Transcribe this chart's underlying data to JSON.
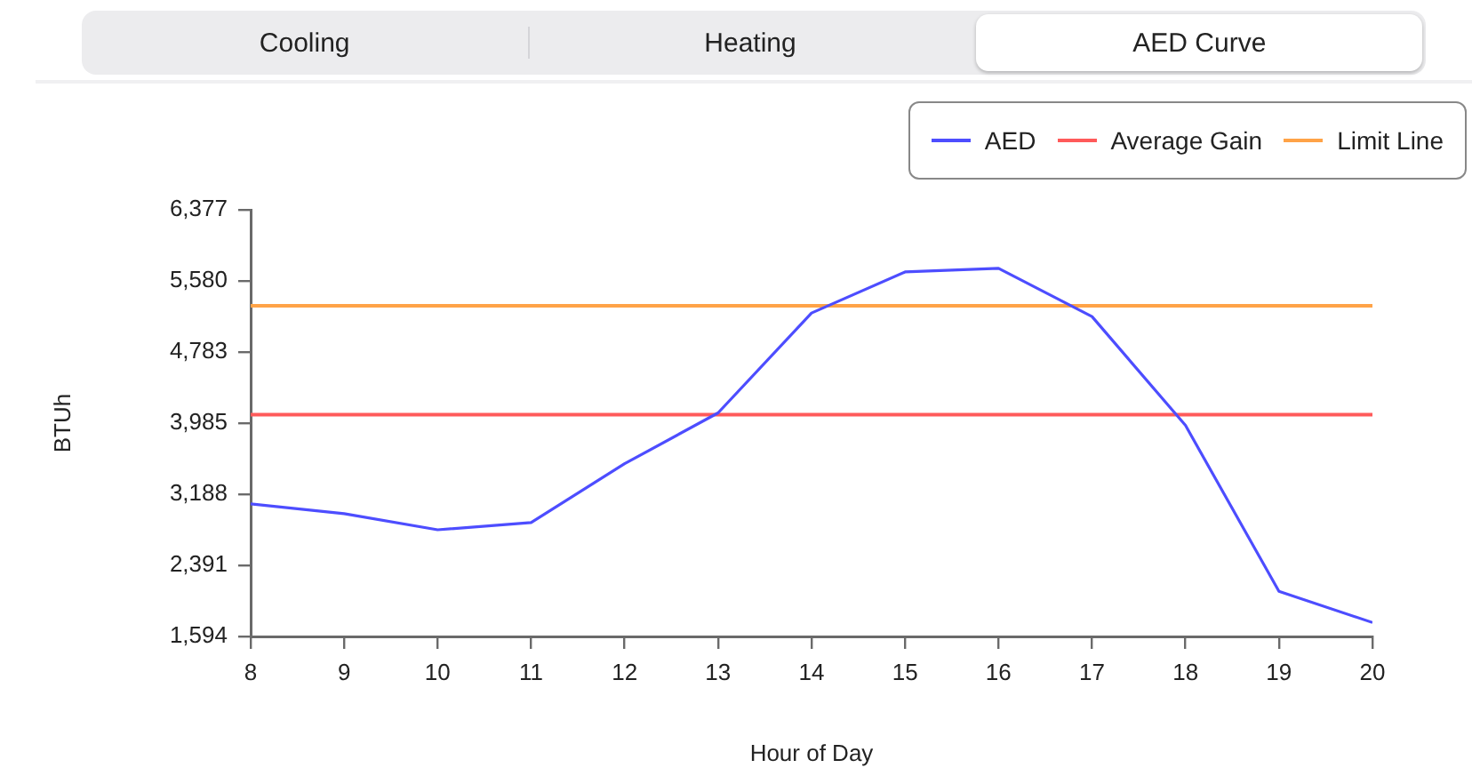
{
  "chart_data": {
    "type": "line",
    "xlabel": "Hour of Day",
    "ylabel": "BTUh",
    "annotations": [
      "Cooling",
      "Heating",
      "AED Curve"
    ],
    "x": [
      8,
      9,
      10,
      11,
      12,
      13,
      14,
      15,
      16,
      17,
      18,
      19,
      20
    ],
    "series": [
      {
        "name": "AED",
        "color": "#4d4dff",
        "values": [
          3080,
          2970,
          2790,
          2870,
          3530,
          4100,
          5220,
          5680,
          5720,
          5180,
          3960,
          2100,
          1750
        ]
      }
    ],
    "ref_lines": [
      {
        "axis": "y",
        "value": 4080,
        "label": "Average Gain",
        "color": "#ff5a5a"
      },
      {
        "axis": "y",
        "value": 5300,
        "label": "Limit Line",
        "color": "#ffa347"
      }
    ],
    "xlim": [
      8,
      20
    ],
    "xticks": [
      8,
      9,
      10,
      11,
      12,
      13,
      14,
      15,
      16,
      17,
      18,
      19,
      20
    ],
    "ylim": [
      1594,
      6377
    ],
    "yticks": [
      {
        "value": 1594,
        "label": "1,594"
      },
      {
        "value": 2391,
        "label": "2,391"
      },
      {
        "value": 3188,
        "label": "3,188"
      },
      {
        "value": 3985,
        "label": "3,985"
      },
      {
        "value": 4783,
        "label": "4,783"
      },
      {
        "value": 5580,
        "label": "5,580"
      },
      {
        "value": 6377,
        "label": "6,377"
      }
    ],
    "legend": "top right"
  }
}
